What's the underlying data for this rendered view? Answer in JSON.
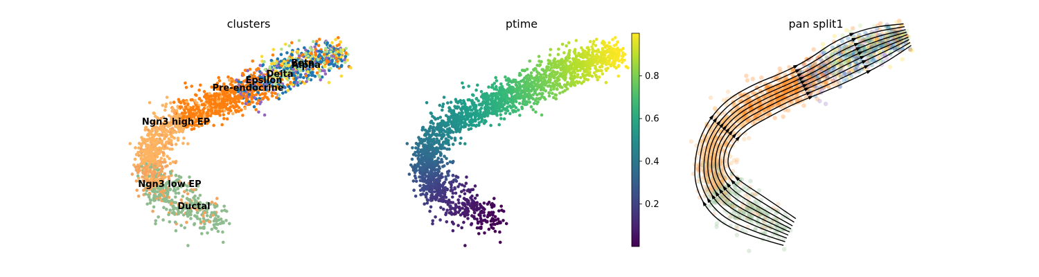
{
  "chart_data": [
    {
      "type": "scatter",
      "title": "clusters",
      "legend": "on data",
      "clusters": [
        {
          "name": "Ductal",
          "color": "#8fbc8f"
        },
        {
          "name": "Ngn3 low EP",
          "color": "#f4a460"
        },
        {
          "name": "Ngn3 high EP",
          "color": "#fdb462"
        },
        {
          "name": "Pre-endocrine",
          "color": "#ff7f0e"
        },
        {
          "name": "Epsilon",
          "color": "#9467bd"
        },
        {
          "name": "Delta",
          "color": "#ffd92f"
        },
        {
          "name": "Beta",
          "color": "#b2df8a"
        },
        {
          "name": "Alpha",
          "color": "#1f77b4"
        }
      ]
    },
    {
      "type": "scatter",
      "title": "ptime",
      "colormap": "viridis",
      "colorbar": {
        "range": [
          0,
          1
        ],
        "ticks": [
          0.2,
          0.4,
          0.6,
          0.8
        ],
        "tick_labels": [
          "0.2",
          "0.4",
          "0.6",
          "0.8"
        ]
      }
    },
    {
      "type": "scatter",
      "title": "pan split1",
      "overlay": "velocity stream lines with arrows"
    }
  ]
}
